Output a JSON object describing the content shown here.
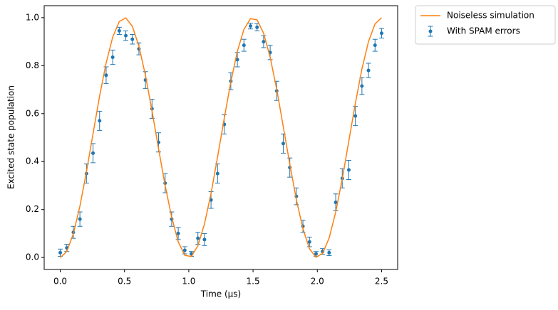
{
  "chart_data": {
    "type": "line",
    "x_label": "Time (µs)",
    "y_label": "Excited state population",
    "x": [
      0,
      0.051,
      0.102,
      0.153,
      0.204,
      0.255,
      0.306,
      0.357,
      0.408,
      0.459,
      0.51,
      0.561,
      0.612,
      0.663,
      0.714,
      0.765,
      0.816,
      0.867,
      0.918,
      0.969,
      1.02,
      1.071,
      1.122,
      1.173,
      1.224,
      1.276,
      1.327,
      1.378,
      1.429,
      1.48,
      1.531,
      1.582,
      1.633,
      1.684,
      1.735,
      1.786,
      1.837,
      1.888,
      1.939,
      1.99,
      2.041,
      2.092,
      2.143,
      2.194,
      2.245,
      2.296,
      2.347,
      2.398,
      2.449,
      2.5
    ],
    "series": [
      {
        "name": "Noiseless simulation",
        "type": "line",
        "color": "#ff7f0e",
        "values": [
          0,
          0.025,
          0.099,
          0.214,
          0.358,
          0.516,
          0.673,
          0.811,
          0.919,
          0.984,
          0.999,
          0.964,
          0.881,
          0.759,
          0.611,
          0.453,
          0.3,
          0.168,
          0.065,
          0.009,
          0.004,
          0.049,
          0.14,
          0.267,
          0.419,
          0.581,
          0.732,
          0.86,
          0.951,
          0.996,
          0.991,
          0.935,
          0.835,
          0.702,
          0.546,
          0.389,
          0.241,
          0.12,
          0.036,
          0.001,
          0.017,
          0.081,
          0.189,
          0.328,
          0.485,
          0.643,
          0.786,
          0.9,
          0.974,
          1.0
        ]
      },
      {
        "name": "With SPAM errors",
        "type": "errorbar",
        "color": "#1f77b4",
        "values": [
          0.02,
          0.04,
          0.105,
          0.16,
          0.35,
          0.435,
          0.57,
          0.76,
          0.835,
          0.945,
          0.925,
          0.91,
          0.87,
          0.74,
          0.62,
          0.48,
          0.31,
          0.16,
          0.1,
          0.03,
          0.015,
          0.08,
          0.075,
          0.24,
          0.35,
          0.555,
          0.735,
          0.825,
          0.885,
          0.965,
          0.96,
          0.9,
          0.855,
          0.695,
          0.475,
          0.375,
          0.255,
          0.13,
          0.065,
          0.015,
          0.025,
          0.02,
          0.23,
          0.33,
          0.365,
          0.59,
          0.715,
          0.78,
          0.885,
          0.935
        ],
        "errors": [
          0.015,
          0.015,
          0.025,
          0.03,
          0.04,
          0.04,
          0.04,
          0.035,
          0.03,
          0.015,
          0.02,
          0.02,
          0.025,
          0.035,
          0.04,
          0.04,
          0.04,
          0.03,
          0.025,
          0.015,
          0.01,
          0.025,
          0.025,
          0.035,
          0.04,
          0.04,
          0.035,
          0.03,
          0.025,
          0.012,
          0.015,
          0.025,
          0.03,
          0.04,
          0.04,
          0.04,
          0.035,
          0.025,
          0.02,
          0.01,
          0.012,
          0.012,
          0.035,
          0.04,
          0.04,
          0.04,
          0.035,
          0.03,
          0.025,
          0.02
        ]
      }
    ],
    "xlim": [
      -0.125,
      2.625
    ],
    "ylim": [
      -0.05,
      1.05
    ],
    "xticks": [
      {
        "value": 0,
        "label": "0.0"
      },
      {
        "value": 0.5,
        "label": "0.5"
      },
      {
        "value": 1,
        "label": "1.0"
      },
      {
        "value": 1.5,
        "label": "1.5"
      },
      {
        "value": 2,
        "label": "2.0"
      },
      {
        "value": 2.5,
        "label": "2.5"
      }
    ],
    "yticks": [
      {
        "value": 0,
        "label": "0.0"
      },
      {
        "value": 0.2,
        "label": "0.2"
      },
      {
        "value": 0.4,
        "label": "0.4"
      },
      {
        "value": 0.6,
        "label": "0.6"
      },
      {
        "value": 0.8,
        "label": "0.8"
      },
      {
        "value": 1,
        "label": "1.0"
      }
    ],
    "grid": false,
    "legend": "outside-upper-right"
  }
}
